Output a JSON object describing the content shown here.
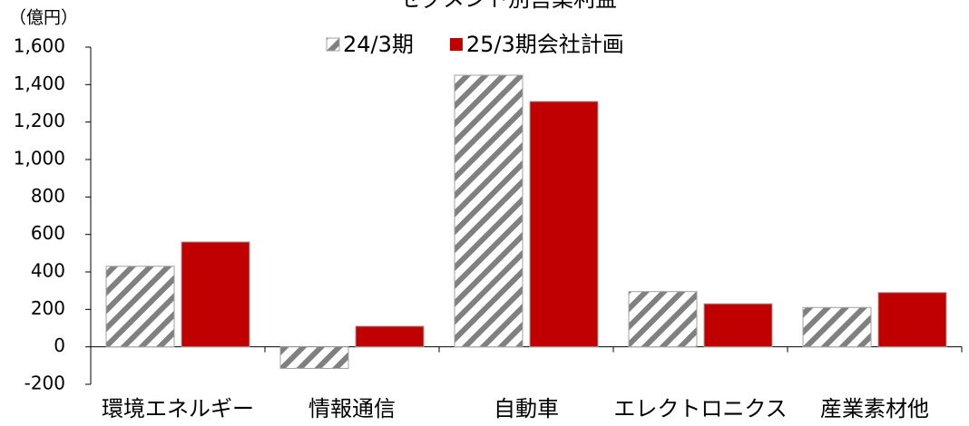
{
  "chart_data": {
    "type": "bar",
    "title": "セグメント別営業利益",
    "y_label": "（億円）",
    "categories": [
      "環境エネルギー",
      "情報通信",
      "自動車",
      "エレクトロニクス",
      "産業素材他"
    ],
    "series": [
      {
        "name": "24/3期",
        "color": "#808080",
        "hatch": true,
        "values": [
          430,
          -115,
          1450,
          295,
          210
        ]
      },
      {
        "name": "25/3期会社計画",
        "color": "#c00000",
        "hatch": false,
        "values": [
          560,
          110,
          1310,
          230,
          290
        ]
      }
    ],
    "ylim": [
      -200,
      1600
    ],
    "yticks": [
      -200,
      0,
      200,
      400,
      600,
      800,
      {
        "value": 1000,
        "label": "1,000"
      },
      {
        "value": 1200,
        "label": "1,200"
      },
      {
        "value": 1400,
        "label": "1,400"
      },
      {
        "value": 1600,
        "label": "1,600"
      }
    ],
    "grid": false
  }
}
